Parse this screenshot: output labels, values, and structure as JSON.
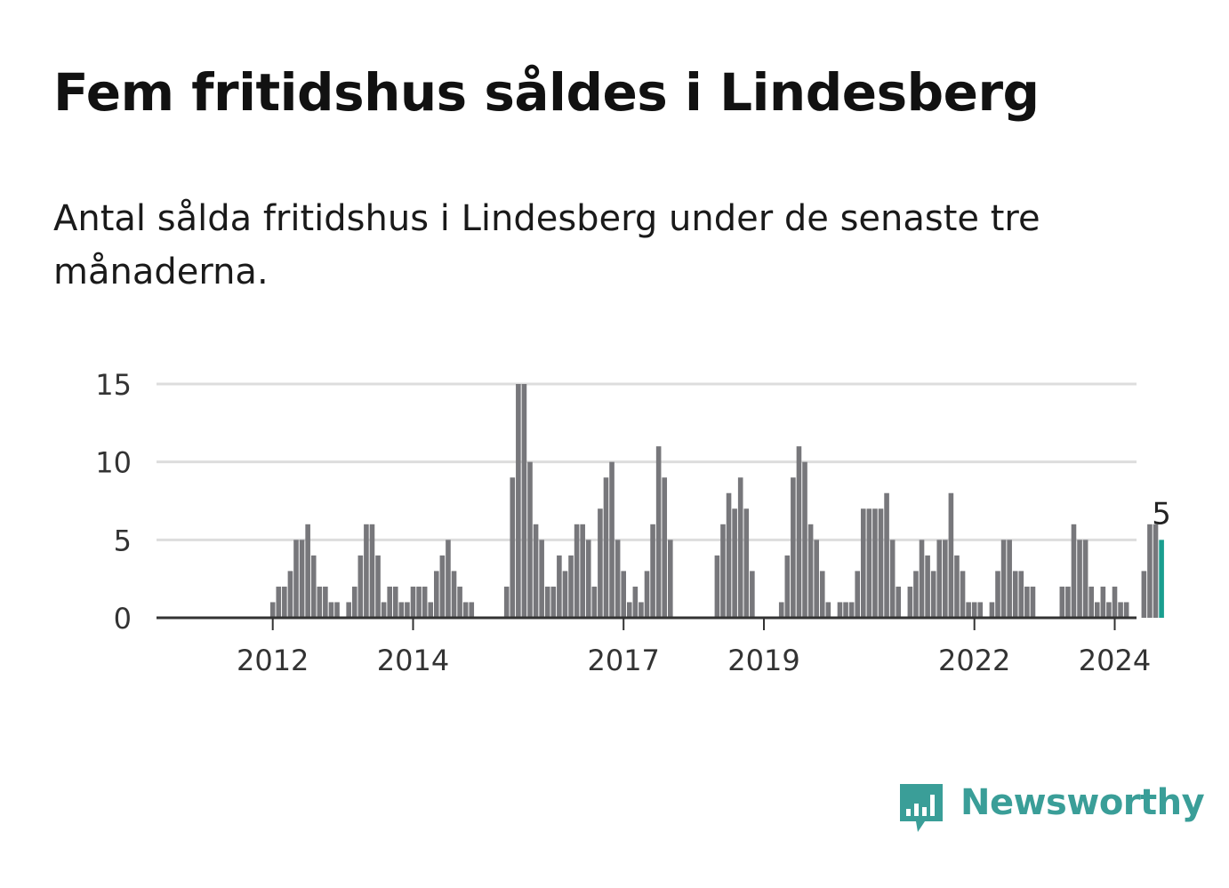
{
  "title": "Fem fritidshus såldes i Lindesberg",
  "subtitle": "Antal sålda fritidshus i Lindesberg under de senaste tre månaderna.",
  "brand": {
    "name": "Newsworthy",
    "color": "#3a9e98",
    "icon": "bar-chart-speech-bubble-icon"
  },
  "colors": {
    "bar": "#77777b",
    "highlight": "#1a9e8f",
    "grid": "#dddddd",
    "axis": "#333333",
    "tick_text": "#333333"
  },
  "chart_data": {
    "type": "bar",
    "title": "Fem fritidshus såldes i Lindesberg",
    "xlabel": "",
    "ylabel": "",
    "ylim": [
      0,
      15
    ],
    "yticks": [
      0,
      5,
      10,
      15
    ],
    "grid": true,
    "x_start": "2011-01",
    "xticks": [
      {
        "label": "2012",
        "month": "2012-01"
      },
      {
        "label": "2014",
        "month": "2014-01"
      },
      {
        "label": "2017",
        "month": "2017-01"
      },
      {
        "label": "2019",
        "month": "2019-01"
      },
      {
        "label": "2022",
        "month": "2022-01"
      },
      {
        "label": "2024",
        "month": "2024-01"
      }
    ],
    "values": [
      0,
      0,
      0,
      0,
      0,
      0,
      0,
      0,
      0,
      0,
      0,
      0,
      1,
      2,
      2,
      3,
      5,
      5,
      6,
      4,
      2,
      2,
      1,
      1,
      0,
      1,
      2,
      4,
      6,
      6,
      4,
      1,
      2,
      2,
      1,
      1,
      2,
      2,
      2,
      1,
      3,
      4,
      5,
      3,
      2,
      1,
      1,
      0,
      0,
      0,
      0,
      0,
      2,
      9,
      15,
      15,
      10,
      6,
      5,
      2,
      2,
      4,
      3,
      4,
      6,
      6,
      5,
      2,
      7,
      9,
      10,
      5,
      3,
      1,
      2,
      1,
      3,
      6,
      11,
      9,
      5,
      0,
      0,
      0,
      0,
      0,
      0,
      0,
      4,
      6,
      8,
      7,
      9,
      7,
      3,
      0,
      0,
      0,
      0,
      1,
      4,
      9,
      11,
      10,
      6,
      5,
      3,
      1,
      0,
      1,
      1,
      1,
      3,
      7,
      7,
      7,
      7,
      8,
      5,
      2,
      0,
      2,
      3,
      5,
      4,
      3,
      5,
      5,
      8,
      4,
      3,
      1,
      1,
      1,
      0,
      1,
      3,
      5,
      5,
      3,
      3,
      2,
      2,
      0,
      0,
      0,
      0,
      2,
      2,
      6,
      5,
      5,
      2,
      1,
      2,
      1,
      2,
      1,
      1,
      0,
      0,
      3,
      6,
      6,
      5
    ],
    "highlight_last": true,
    "annotation": {
      "label": "5",
      "index": "last"
    }
  }
}
